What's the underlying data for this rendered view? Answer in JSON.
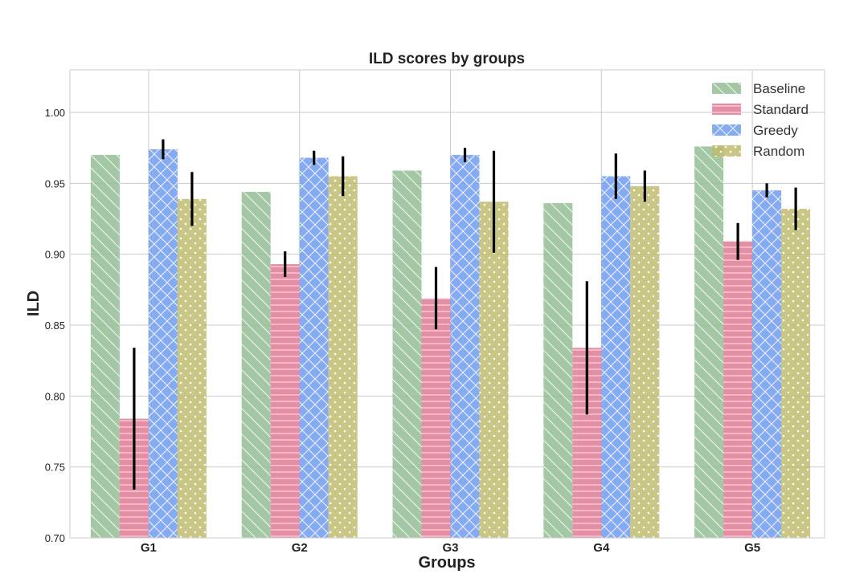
{
  "chart_data": {
    "type": "bar",
    "title": "ILD scores by groups",
    "xlabel": "Groups",
    "ylabel": "ILD",
    "categories": [
      "G1",
      "G2",
      "G3",
      "G4",
      "G5"
    ],
    "ylim": [
      0.7,
      1.03
    ],
    "yticks": [
      "0.70",
      "0.75",
      "0.80",
      "0.85",
      "0.90",
      "0.95",
      "1.00"
    ],
    "grid": true,
    "legend_position": "top-right",
    "series": [
      {
        "name": "Baseline",
        "color": "#8fbc8f",
        "hatch": "diagonal",
        "values": [
          0.97,
          0.944,
          0.959,
          0.936,
          0.976
        ],
        "errors": null
      },
      {
        "name": "Standard",
        "color": "#e0758f",
        "hatch": "horizontal",
        "values": [
          0.784,
          0.893,
          0.869,
          0.834,
          0.909
        ],
        "errors": [
          0.05,
          0.009,
          0.022,
          0.047,
          0.013
        ]
      },
      {
        "name": "Greedy",
        "color": "#6d98ee",
        "hatch": "cross",
        "values": [
          0.974,
          0.968,
          0.97,
          0.955,
          0.945
        ],
        "errors": [
          0.007,
          0.005,
          0.005,
          0.016,
          0.005
        ]
      },
      {
        "name": "Random",
        "color": "#bdba6b",
        "hatch": "dots",
        "values": [
          0.939,
          0.955,
          0.937,
          0.948,
          0.932
        ],
        "errors": [
          0.019,
          0.014,
          0.036,
          0.011,
          0.015
        ]
      }
    ]
  }
}
